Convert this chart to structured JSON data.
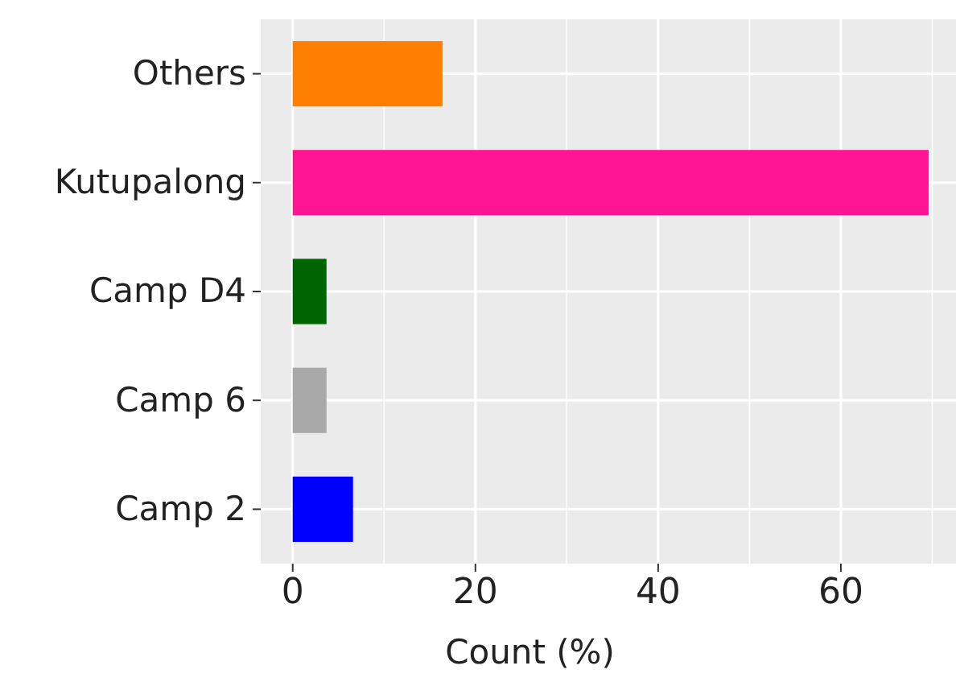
{
  "chart_data": {
    "type": "bar",
    "orientation": "horizontal",
    "xlabel": "Count (%)",
    "categories": [
      "Others",
      "Kutupalong",
      "Camp D4",
      "Camp 6",
      "Camp 2"
    ],
    "values": [
      16.4,
      69.6,
      3.7,
      3.7,
      6.6
    ],
    "colors": [
      "#ff7f00",
      "#ff1493",
      "#006400",
      "#a9a9a9",
      "#0000ff"
    ],
    "xlim": [
      -3.5,
      72.6
    ],
    "xticks": [
      0,
      20,
      40,
      60
    ],
    "grid": true
  }
}
